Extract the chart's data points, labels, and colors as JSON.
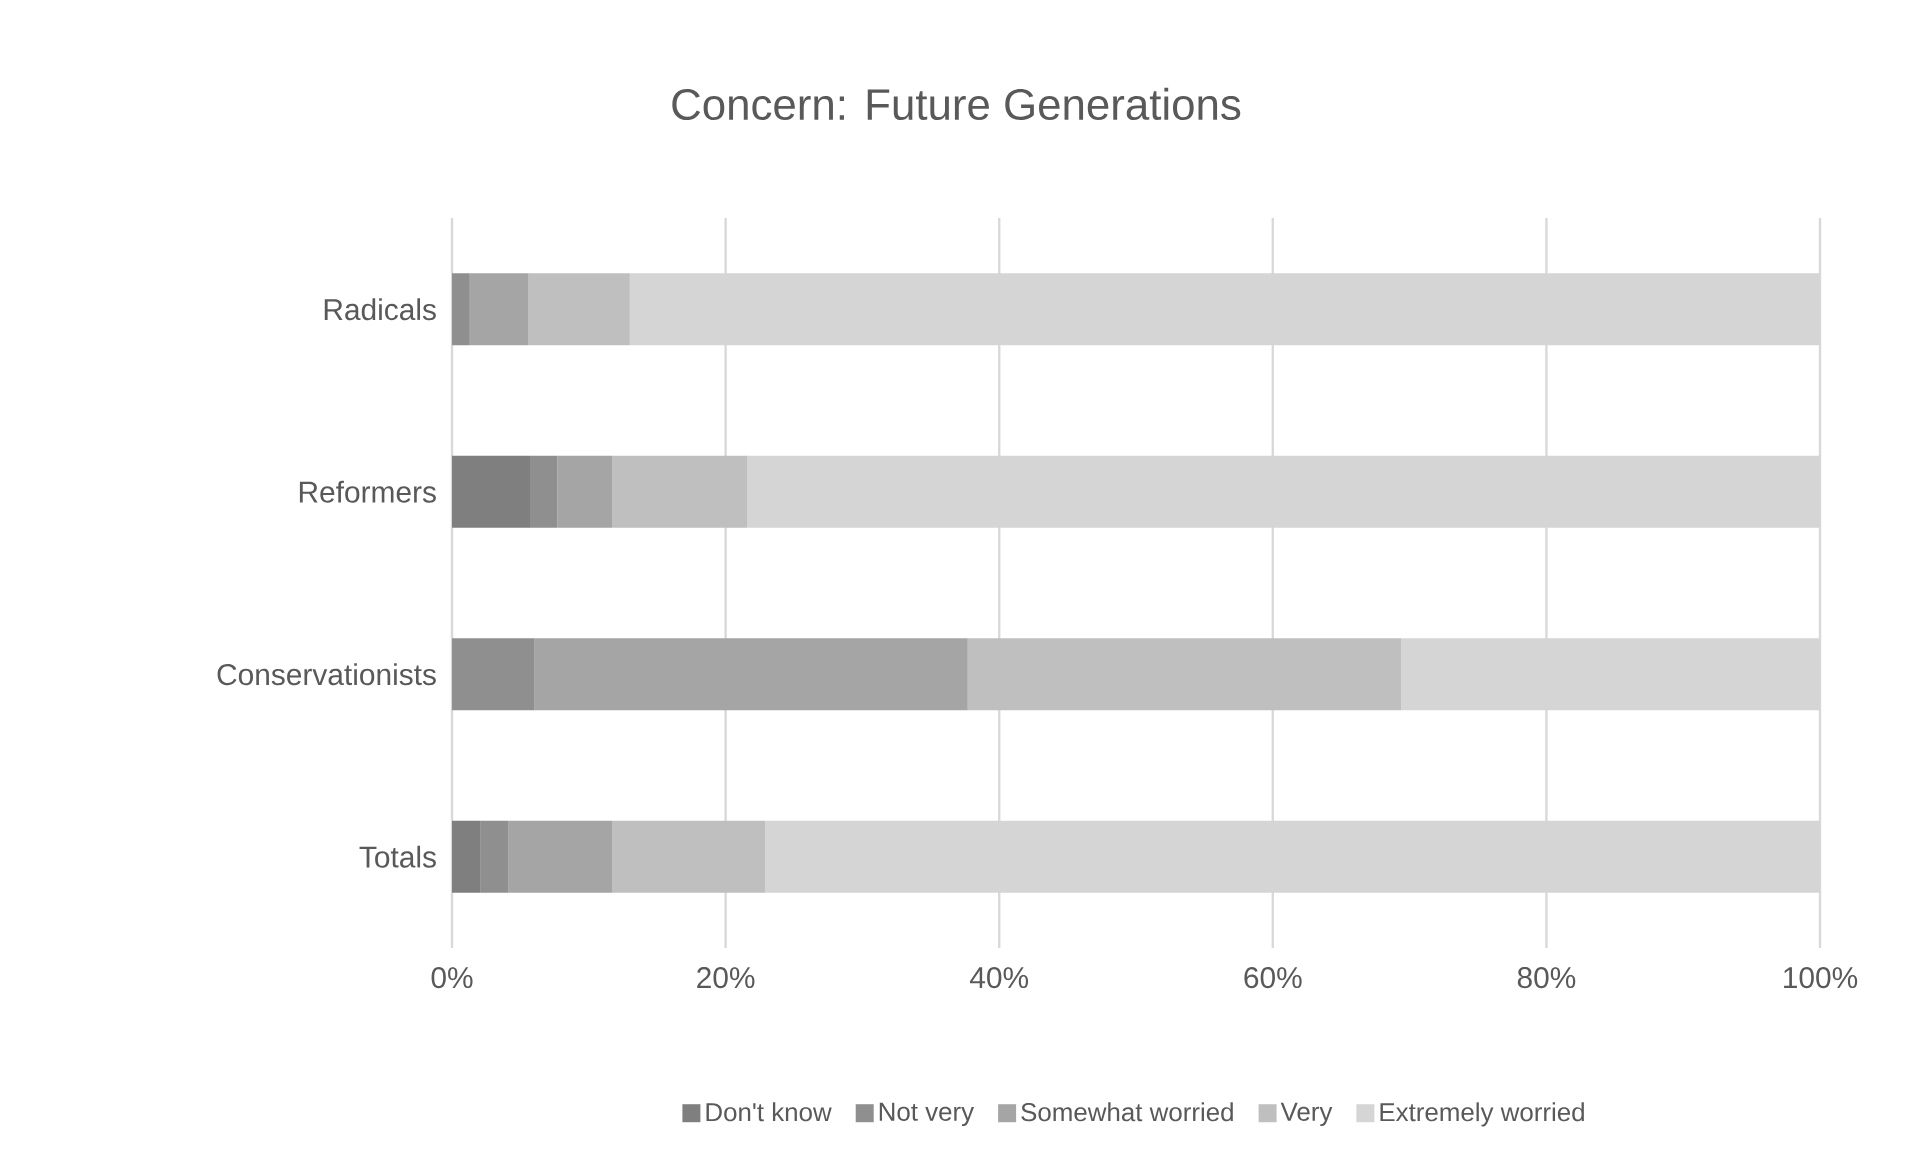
{
  "chart_data": {
    "type": "bar",
    "orientation": "horizontal",
    "stacked": true,
    "title": "Concern: Future Generations",
    "categories": [
      "Radicals",
      "Reformers",
      "Conservationists",
      "Totals"
    ],
    "series": [
      {
        "name": "Don't know",
        "color": "#7f7f7f",
        "values": [
          0,
          5.7,
          0,
          2.1
        ]
      },
      {
        "name": "Not very",
        "color": "#8f8f8f",
        "values": [
          1.3,
          2.0,
          6.0,
          2.0
        ]
      },
      {
        "name": "Somewhat worried",
        "color": "#a5a5a5",
        "values": [
          4.3,
          4.0,
          31.7,
          7.6
        ]
      },
      {
        "name": "Very",
        "color": "#bfbfbf",
        "values": [
          7.4,
          9.9,
          31.7,
          11.2
        ]
      },
      {
        "name": "Extremely worried",
        "color": "#d5d5d5",
        "values": [
          87.0,
          78.4,
          30.6,
          77.1
        ]
      }
    ],
    "xlim": [
      0,
      100
    ],
    "xticks": [
      {
        "value": 0,
        "label": "0%"
      },
      {
        "value": 20,
        "label": "20%"
      },
      {
        "value": 40,
        "label": "40%"
      },
      {
        "value": 60,
        "label": "60%"
      },
      {
        "value": 80,
        "label": "80%"
      },
      {
        "value": 100,
        "label": "100%"
      }
    ],
    "grid": "x",
    "legend": "bottom"
  }
}
